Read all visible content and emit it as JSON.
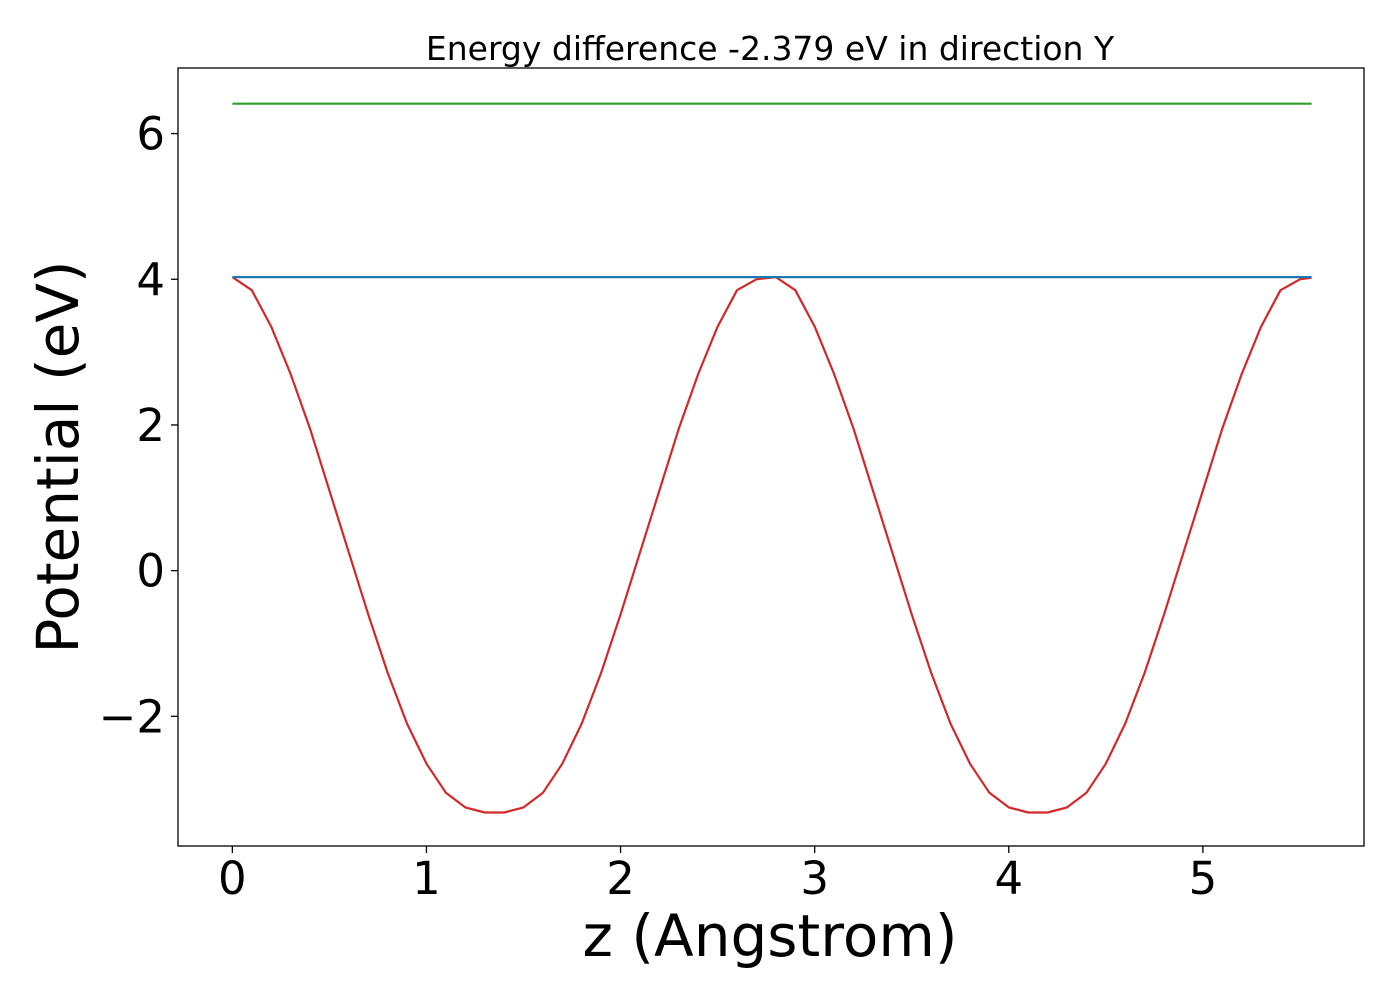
{
  "chart_data": {
    "type": "line",
    "title": "Energy difference -2.379 eV in direction Y",
    "xlabel": "z (Angstrom)",
    "ylabel": "Potential (eV)",
    "xlim": [
      -0.28,
      5.83
    ],
    "ylim": [
      -3.78,
      6.9
    ],
    "grid": false,
    "legend": "none",
    "x_ticks": [
      {
        "value": 0,
        "label": "0"
      },
      {
        "value": 1,
        "label": "1"
      },
      {
        "value": 2,
        "label": "2"
      },
      {
        "value": 3,
        "label": "3"
      },
      {
        "value": 4,
        "label": "4"
      },
      {
        "value": 5,
        "label": "5"
      }
    ],
    "y_ticks": [
      {
        "value": -2,
        "label": "−2"
      },
      {
        "value": 0,
        "label": "0"
      },
      {
        "value": 2,
        "label": "2"
      },
      {
        "value": 4,
        "label": "4"
      },
      {
        "value": 6,
        "label": "6"
      }
    ],
    "series": [
      {
        "color": "#d62728",
        "style": "cosine-like potential profile",
        "x": [
          0,
          0.1,
          0.2,
          0.3,
          0.4,
          0.5,
          0.6,
          0.7,
          0.8,
          0.9,
          1.0,
          1.1,
          1.2,
          1.3,
          1.4,
          1.5,
          1.6,
          1.7,
          1.8,
          1.9,
          2.0,
          2.1,
          2.2,
          2.3,
          2.4,
          2.5,
          2.6,
          2.7,
          2.8,
          2.9,
          3.0,
          3.1,
          3.2,
          3.3,
          3.4,
          3.5,
          3.6,
          3.7,
          3.8,
          3.9,
          4.0,
          4.1,
          4.2,
          4.3,
          4.4,
          4.5,
          4.6,
          4.7,
          4.8,
          4.9,
          5.0,
          5.1,
          5.2,
          5.3,
          5.4,
          5.5,
          5.56
        ],
        "y": [
          4.03,
          3.85,
          3.35,
          2.7,
          1.95,
          1.1,
          0.25,
          -0.6,
          -1.4,
          -2.1,
          -2.65,
          -3.05,
          -3.25,
          -3.32,
          -3.32,
          -3.25,
          -3.05,
          -2.65,
          -2.1,
          -1.4,
          -0.6,
          0.25,
          1.1,
          1.95,
          2.7,
          3.35,
          3.85,
          4.0,
          4.03,
          3.85,
          3.35,
          2.7,
          1.95,
          1.1,
          0.25,
          -0.6,
          -1.4,
          -2.1,
          -2.65,
          -3.05,
          -3.25,
          -3.32,
          -3.32,
          -3.25,
          -3.05,
          -2.65,
          -2.1,
          -1.4,
          -0.6,
          0.25,
          1.1,
          1.95,
          2.7,
          3.35,
          3.85,
          4.0,
          4.02
        ]
      },
      {
        "color": "#1f77b4",
        "style": "horizontal line",
        "x": [
          0,
          5.56
        ],
        "y": [
          4.03,
          4.03
        ]
      },
      {
        "color": "#2ca02c",
        "style": "horizontal line",
        "x": [
          0,
          5.56
        ],
        "y": [
          6.41,
          6.41
        ]
      }
    ]
  }
}
